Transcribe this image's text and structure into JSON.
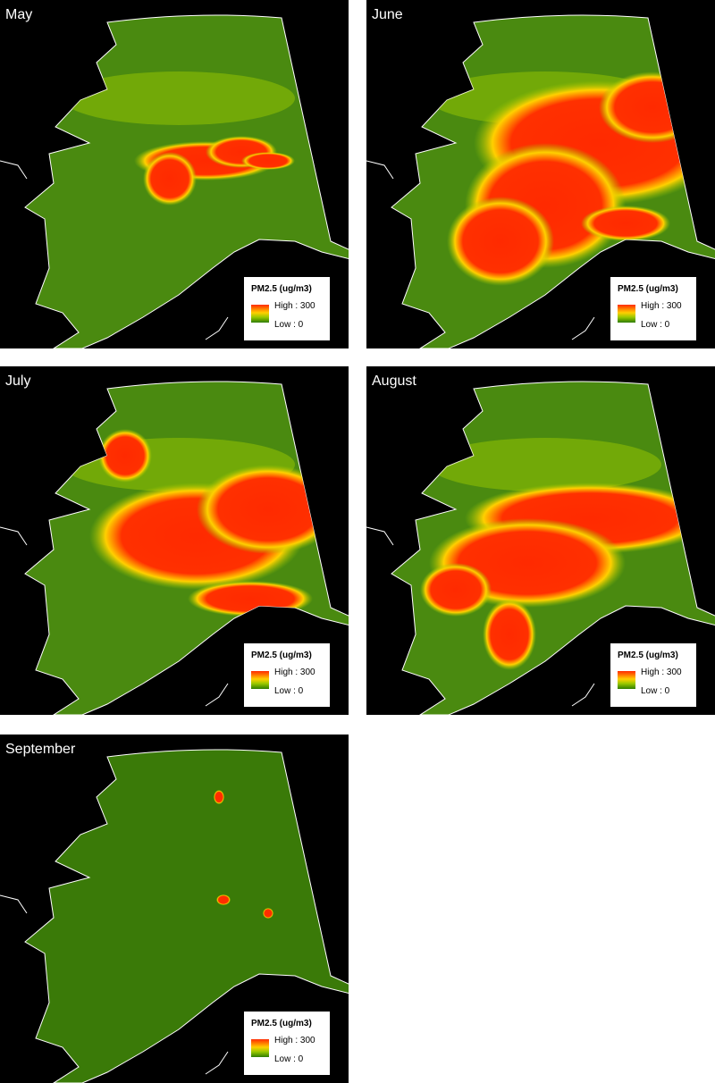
{
  "legend": {
    "title": "PM2.5 (ug/m3)",
    "high_label": "High : 300",
    "low_label": "Low : 0",
    "colors": {
      "high": "#ff2a00",
      "mid": "#ffd000",
      "low": "#2e7d00"
    }
  },
  "panels": [
    {
      "month": "May",
      "smoke_level": "low"
    },
    {
      "month": "June",
      "smoke_level": "high"
    },
    {
      "month": "July",
      "smoke_level": "high"
    },
    {
      "month": "August",
      "smoke_level": "high"
    },
    {
      "month": "September",
      "smoke_level": "very low"
    }
  ]
}
